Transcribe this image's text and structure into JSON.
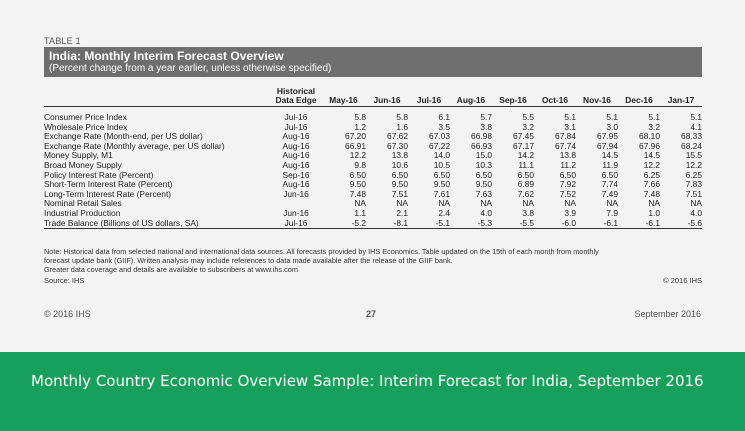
{
  "table": {
    "label": "TABLE 1",
    "title": "India: Monthly Interim Forecast Overview",
    "subtitle": "(Percent change from a year earlier, unless otherwise specified)",
    "hist_header_1": "Historical",
    "hist_header_2": "Data Edge",
    "columns": [
      "May-16",
      "Jun-16",
      "Jul-16",
      "Aug-16",
      "Sep-16",
      "Oct-16",
      "Nov-16",
      "Dec-16",
      "Jan-17"
    ],
    "rows": [
      {
        "label": "Consumer Price Index",
        "edge": "Jul-16",
        "values": [
          "5.8",
          "5.8",
          "6.1",
          "5.7",
          "5.5",
          "5.1",
          "5.1",
          "5.1",
          "5.1"
        ]
      },
      {
        "label": "Wholesale Price Index",
        "edge": "Jul-16",
        "values": [
          "1.2",
          "1.6",
          "3.5",
          "3.8",
          "3.2",
          "3.1",
          "3.0",
          "3.2",
          "4.1"
        ]
      },
      {
        "label": "Exchange Rate (Month-end, per US dollar)",
        "edge": "Aug-16",
        "values": [
          "67.20",
          "67.62",
          "67.03",
          "66.98",
          "67.45",
          "67.84",
          "67.95",
          "68.10",
          "68.33"
        ]
      },
      {
        "label": "Exchange Rate (Monthly average, per US dollar)",
        "edge": "Aug-16",
        "values": [
          "66.91",
          "67.30",
          "67.22",
          "66.93",
          "67.17",
          "67.74",
          "67.94",
          "67.96",
          "68.24"
        ]
      },
      {
        "label": "Money Supply, M1",
        "edge": "Aug-16",
        "values": [
          "12.2",
          "13.8",
          "14.0",
          "15.0",
          "14.2",
          "13.8",
          "14.5",
          "14.5",
          "15.5"
        ]
      },
      {
        "label": "Broad Money Supply",
        "edge": "Aug-16",
        "values": [
          "9.8",
          "10.6",
          "10.5",
          "10.3",
          "11.1",
          "11.2",
          "11.9",
          "12.2",
          "12.2"
        ]
      },
      {
        "label": "Policy Interest Rate (Percent)",
        "edge": "Sep-16",
        "values": [
          "6.50",
          "6.50",
          "6.50",
          "6.50",
          "6.50",
          "6.50",
          "6.50",
          "6.25",
          "6.25"
        ]
      },
      {
        "label": "Short-Term Interest Rate (Percent)",
        "edge": "Aug-16",
        "values": [
          "9.50",
          "9.50",
          "9.50",
          "9.50",
          "6.89",
          "7.92",
          "7.74",
          "7.66",
          "7.83"
        ]
      },
      {
        "label": "Long-Term Interest Rate (Percent)",
        "edge": "Jun-16",
        "values": [
          "7.48",
          "7.51",
          "7.61",
          "7.63",
          "7.62",
          "7.52",
          "7.49",
          "7.48",
          "7.51"
        ]
      },
      {
        "label": "Nominal Retail Sales",
        "edge": "",
        "values": [
          "NA",
          "NA",
          "NA",
          "NA",
          "NA",
          "NA",
          "NA",
          "NA",
          "NA"
        ]
      },
      {
        "label": "Industrial Production",
        "edge": "Jun-16",
        "values": [
          "1.1",
          "2.1",
          "2.4",
          "4.0",
          "3.8",
          "3.9",
          "7.9",
          "1.0",
          "4.0"
        ]
      },
      {
        "label": "Trade Balance (Billions of US dollars, SA)",
        "edge": "Jul-16",
        "values": [
          "-5.2",
          "-8.1",
          "-5.1",
          "-5.3",
          "-5.5",
          "-6.0",
          "-6.1",
          "-6.1",
          "-5.6"
        ]
      }
    ],
    "notes": [
      "Note: Historical data from selected national and international data sources. All forecasts provided by IHS Economics. Table updated on the 15th of each month from monthly",
      "forecast update bank (GIIF). Written analysis may include references to data made available after the release of the GIIF bank.",
      "Greater data coverage and details are available to subscribers at www.ihs.com"
    ],
    "source": "Source: IHS",
    "copyright": "© 2016 IHS"
  },
  "footer": {
    "left": "© 2016 IHS",
    "page": "27",
    "right": "September 2016"
  },
  "caption": "Monthly Country Economic Overview Sample: Interim Forecast for India, September 2016",
  "colors": {
    "title_bar": "#6e6e6e",
    "caption_band": "#16a05b"
  }
}
